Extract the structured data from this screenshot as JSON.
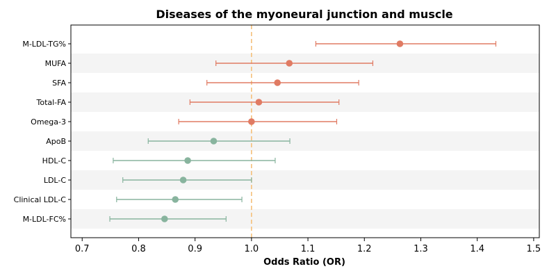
{
  "chart_data": {
    "type": "forest",
    "title": "Diseases of the myoneural junction and muscle",
    "xlabel": "Odds Ratio (OR)",
    "ylabel": "",
    "xlim": [
      0.68,
      1.51
    ],
    "xticks": [
      0.7,
      0.8,
      0.9,
      1.0,
      1.1,
      1.2,
      1.3,
      1.4,
      1.5
    ],
    "xtick_labels": [
      "0.7",
      "0.8",
      "0.9",
      "1.0",
      "1.1",
      "1.2",
      "1.3",
      "1.4",
      "1.5"
    ],
    "reference_line": 1.0,
    "grid": false,
    "alternating_row_shading": true,
    "colors": {
      "risk": "#e07b63",
      "protective": "#88b49e",
      "reference": "#f5c07a",
      "band": "#f4f4f4"
    },
    "rows": [
      {
        "label": "M-LDL-TG%",
        "or": 1.263,
        "lo": 1.114,
        "hi": 1.433,
        "group": "risk"
      },
      {
        "label": "MUFA",
        "or": 1.067,
        "lo": 0.937,
        "hi": 1.215,
        "group": "risk"
      },
      {
        "label": "SFA",
        "or": 1.046,
        "lo": 0.921,
        "hi": 1.19,
        "group": "risk"
      },
      {
        "label": "Total-FA",
        "or": 1.013,
        "lo": 0.891,
        "hi": 1.155,
        "group": "risk"
      },
      {
        "label": "Omega-3",
        "or": 1.0,
        "lo": 0.871,
        "hi": 1.151,
        "group": "risk"
      },
      {
        "label": "ApoB",
        "or": 0.933,
        "lo": 0.817,
        "hi": 1.068,
        "group": "protective"
      },
      {
        "label": "HDL-C",
        "or": 0.887,
        "lo": 0.755,
        "hi": 1.042,
        "group": "protective"
      },
      {
        "label": "LDL-C",
        "or": 0.879,
        "lo": 0.772,
        "hi": 1.0,
        "group": "protective"
      },
      {
        "label": "Clinical LDL-C",
        "or": 0.865,
        "lo": 0.761,
        "hi": 0.983,
        "group": "protective"
      },
      {
        "label": "M-LDL-FC%",
        "or": 0.846,
        "lo": 0.749,
        "hi": 0.955,
        "group": "protective"
      }
    ]
  }
}
